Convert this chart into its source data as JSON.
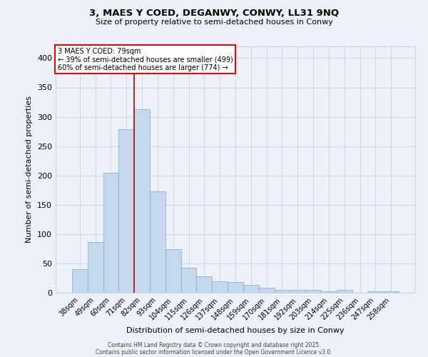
{
  "title1": "3, MAES Y COED, DEGANWY, CONWY, LL31 9NQ",
  "title2": "Size of property relative to semi-detached houses in Conwy",
  "xlabel": "Distribution of semi-detached houses by size in Conwy",
  "ylabel": "Number of semi-detached properties",
  "bar_color": "#c5d8ee",
  "bar_edge_color": "#7aaad0",
  "categories": [
    "38sqm",
    "49sqm",
    "60sqm",
    "71sqm",
    "82sqm",
    "93sqm",
    "104sqm",
    "115sqm",
    "126sqm",
    "137sqm",
    "148sqm",
    "159sqm",
    "170sqm",
    "181sqm",
    "192sqm",
    "203sqm",
    "214sqm",
    "225sqm",
    "236sqm",
    "247sqm",
    "258sqm"
  ],
  "values": [
    40,
    87,
    204,
    279,
    313,
    173,
    74,
    43,
    28,
    20,
    18,
    13,
    9,
    5,
    5,
    5,
    2,
    5,
    0,
    3,
    3
  ],
  "ylim": [
    0,
    420
  ],
  "yticks": [
    0,
    50,
    100,
    150,
    200,
    250,
    300,
    350,
    400
  ],
  "annotation_text_line1": "3 MAES Y COED: 79sqm",
  "annotation_text_line2": "← 39% of semi-detached houses are smaller (499)",
  "annotation_text_line3": "60% of semi-detached houses are larger (774) →",
  "vline_x_index": 4,
  "vline_color": "#bb0000",
  "grid_color": "#c8d8e8",
  "background_color": "#eef2f8",
  "footer1": "Contains HM Land Registry data © Crown copyright and database right 2025.",
  "footer2": "Contains public sector information licensed under the Open Government Licence v3.0."
}
